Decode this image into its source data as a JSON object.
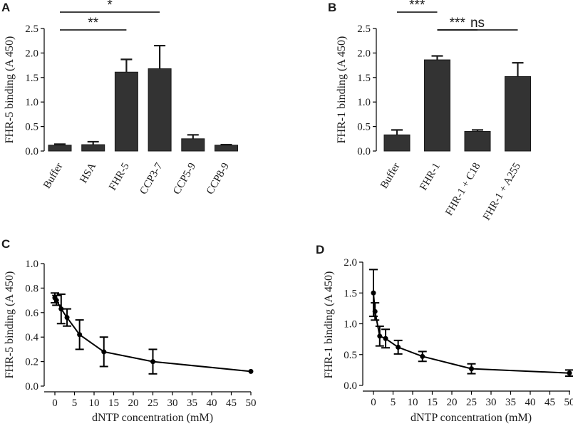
{
  "chart_data": [
    {
      "panel": "A",
      "type": "bar",
      "ylabel": "FHR-5 binding (A 450)",
      "ylim": [
        0,
        2.5
      ],
      "yticks": [
        "0.0",
        "0.5",
        "1.0",
        "1.5",
        "2.0",
        "2.5"
      ],
      "categories": [
        "Buffer",
        "HSA",
        "FHR-5",
        "CCP3-7",
        "CCP5-9",
        "CCP8-9"
      ],
      "values": [
        0.12,
        0.13,
        1.61,
        1.68,
        0.25,
        0.12
      ],
      "errors": [
        0.02,
        0.06,
        0.26,
        0.47,
        0.08,
        0.01
      ],
      "bar_color": "#333333",
      "significance": [
        {
          "from": 0,
          "to": 3,
          "label": "*"
        },
        {
          "from": 0,
          "to": 2,
          "label": "**"
        }
      ]
    },
    {
      "panel": "B",
      "type": "bar",
      "ylabel": "FHR-1 binding (A 450)",
      "ylim": [
        0,
        2.5
      ],
      "yticks": [
        "0.0",
        "0.5",
        "1.0",
        "1.5",
        "2.0",
        "2.5"
      ],
      "categories": [
        "Buffer",
        "FHR-1",
        "FHR-1 + C18",
        "FHR-1 + A255"
      ],
      "values": [
        0.33,
        1.86,
        0.4,
        1.52
      ],
      "errors": [
        0.1,
        0.08,
        0.03,
        0.28
      ],
      "bar_color": "#333333",
      "significance": [
        {
          "from": 0,
          "to": 1,
          "label": "***"
        },
        {
          "from": 1,
          "to": 2,
          "label": "***"
        },
        {
          "from": 1,
          "to": 3,
          "label": "ns"
        }
      ]
    },
    {
      "panel": "C",
      "type": "line",
      "ylabel": "FHR-5 binding (A 450)",
      "xlabel": "dNTP concentration (mM)",
      "xlim": [
        0,
        50
      ],
      "ylim": [
        0,
        1.0
      ],
      "xticks": [
        0,
        5,
        10,
        15,
        20,
        25,
        30,
        35,
        40,
        45,
        50
      ],
      "yticks": [
        "0.0",
        "0.2",
        "0.4",
        "0.6",
        "0.8",
        "1.0"
      ],
      "x": [
        0,
        0.4,
        1.6,
        3.1,
        6.3,
        12.5,
        25,
        50
      ],
      "y": [
        0.72,
        0.7,
        0.63,
        0.56,
        0.42,
        0.28,
        0.2,
        0.12
      ],
      "errors": [
        0.04,
        0.04,
        0.12,
        0.07,
        0.12,
        0.12,
        0.1,
        0.0
      ]
    },
    {
      "panel": "D",
      "type": "line",
      "ylabel": "FHR-1 binding (A 450)",
      "xlabel": "dNTP concentration (mM)",
      "xlim": [
        0,
        50
      ],
      "ylim": [
        0,
        2.0
      ],
      "xticks": [
        0,
        5,
        10,
        15,
        20,
        25,
        30,
        35,
        40,
        45,
        50
      ],
      "yticks": [
        "0.0",
        "0.5",
        "1.0",
        "1.5",
        "2.0"
      ],
      "x": [
        0,
        0.4,
        1.6,
        3.1,
        6.3,
        12.5,
        25,
        50
      ],
      "y": [
        1.5,
        1.2,
        0.8,
        0.76,
        0.62,
        0.47,
        0.27,
        0.2
      ],
      "errors": [
        0.38,
        0.14,
        0.16,
        0.15,
        0.11,
        0.08,
        0.08,
        0.05
      ]
    }
  ]
}
